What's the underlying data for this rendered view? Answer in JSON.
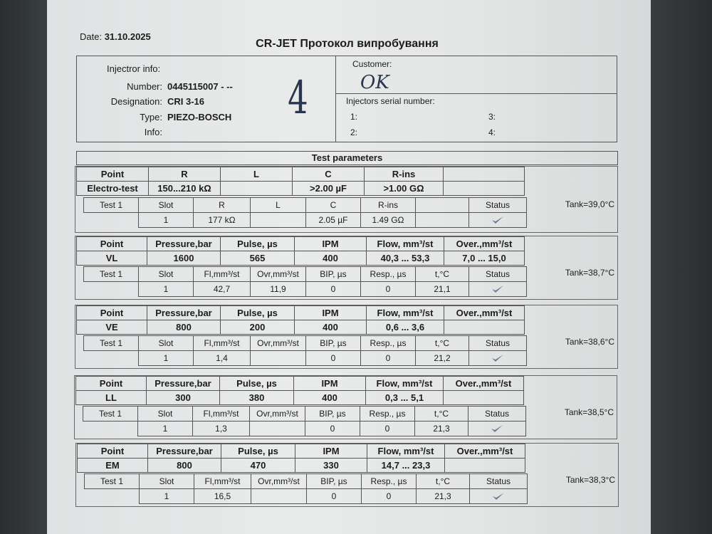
{
  "header": {
    "date_label": "Date:",
    "date_value": "31.10.2025",
    "title": "CR-JET Протокол випробування"
  },
  "injector_info": {
    "heading": "Injectror info:",
    "number_label": "Number:",
    "number_value": "0445115007 - --",
    "designation_label": "Designation:",
    "designation_value": "CRI 3-16",
    "type_label": "Type:",
    "type_value": "PIEZO-BOSCH",
    "info_label": "Info:",
    "info_value": "",
    "handwritten_mark": "4"
  },
  "customer": {
    "label": "Customer:",
    "handwritten_value": "OK",
    "serial_label": "Injectors serial number:",
    "serials": [
      "1:",
      "2:",
      "3:",
      "4:"
    ]
  },
  "test_parameters_title": "Test parameters",
  "status_icon": "checkmark-icon",
  "status_color": "#7a7590",
  "blocks": [
    {
      "id": "electro",
      "header": [
        "Point",
        "R",
        "L",
        "C",
        "R-ins",
        ""
      ],
      "values": [
        "Electro-test",
        "150...210 kΩ",
        "",
        ">2.00 µF",
        ">1.00 GΩ",
        ""
      ],
      "sub_header": [
        "Test 1",
        "Slot",
        "R",
        "L",
        "C",
        "R-ins",
        "",
        "Status"
      ],
      "sub_values": [
        "",
        "1",
        "177 kΩ",
        "",
        "2.05 µF",
        "1.49 GΩ",
        "",
        "pass"
      ],
      "tank": "Tank=39,0°C"
    },
    {
      "id": "vl",
      "header": [
        "Point",
        "Pressure,bar",
        "Pulse, µs",
        "IPM",
        "Flow, mm³/st",
        "Over.,mm³/st"
      ],
      "values": [
        "VL",
        "1600",
        "565",
        "400",
        "40,3 ... 53,3",
        "7,0 ... 15,0"
      ],
      "sub_header": [
        "Test 1",
        "Slot",
        "Fl,mm³/st",
        "Ovr,mm³/st",
        "BIP, µs",
        "Resp., µs",
        "t,°C",
        "Status"
      ],
      "sub_values": [
        "",
        "1",
        "42,7",
        "11,9",
        "0",
        "0",
        "21,1",
        "pass"
      ],
      "tank": "Tank=38,7°C"
    },
    {
      "id": "ve",
      "header": [
        "Point",
        "Pressure,bar",
        "Pulse, µs",
        "IPM",
        "Flow, mm³/st",
        "Over.,mm³/st"
      ],
      "values": [
        "VE",
        "800",
        "200",
        "400",
        "0,6 ... 3,6",
        ""
      ],
      "sub_header": [
        "Test 1",
        "Slot",
        "Fl,mm³/st",
        "Ovr,mm³/st",
        "BIP, µs",
        "Resp., µs",
        "t,°C",
        "Status"
      ],
      "sub_values": [
        "",
        "1",
        "1,4",
        "",
        "0",
        "0",
        "21,2",
        "pass"
      ],
      "tank": "Tank=38,6°C"
    },
    {
      "id": "ll",
      "header": [
        "Point",
        "Pressure,bar",
        "Pulse, µs",
        "IPM",
        "Flow, mm³/st",
        "Over.,mm³/st"
      ],
      "values": [
        "LL",
        "300",
        "380",
        "400",
        "0,3 ... 5,1",
        ""
      ],
      "sub_header": [
        "Test 1",
        "Slot",
        "Fl,mm³/st",
        "Ovr,mm³/st",
        "BIP, µs",
        "Resp., µs",
        "t,°C",
        "Status"
      ],
      "sub_values": [
        "",
        "1",
        "1,3",
        "",
        "0",
        "0",
        "21,3",
        "pass"
      ],
      "tank": "Tank=38,5°C"
    },
    {
      "id": "em",
      "header": [
        "Point",
        "Pressure,bar",
        "Pulse, µs",
        "IPM",
        "Flow, mm³/st",
        "Over.,mm³/st"
      ],
      "values": [
        "EM",
        "800",
        "470",
        "330",
        "14,7 ... 23,3",
        ""
      ],
      "sub_header": [
        "Test 1",
        "Slot",
        "Fl,mm³/st",
        "Ovr,mm³/st",
        "BIP, µs",
        "Resp., µs",
        "t,°C",
        "Status"
      ],
      "sub_values": [
        "",
        "1",
        "16,5",
        "",
        "0",
        "0",
        "21,3",
        "pass"
      ],
      "tank": "Tank=38,3°C"
    }
  ]
}
